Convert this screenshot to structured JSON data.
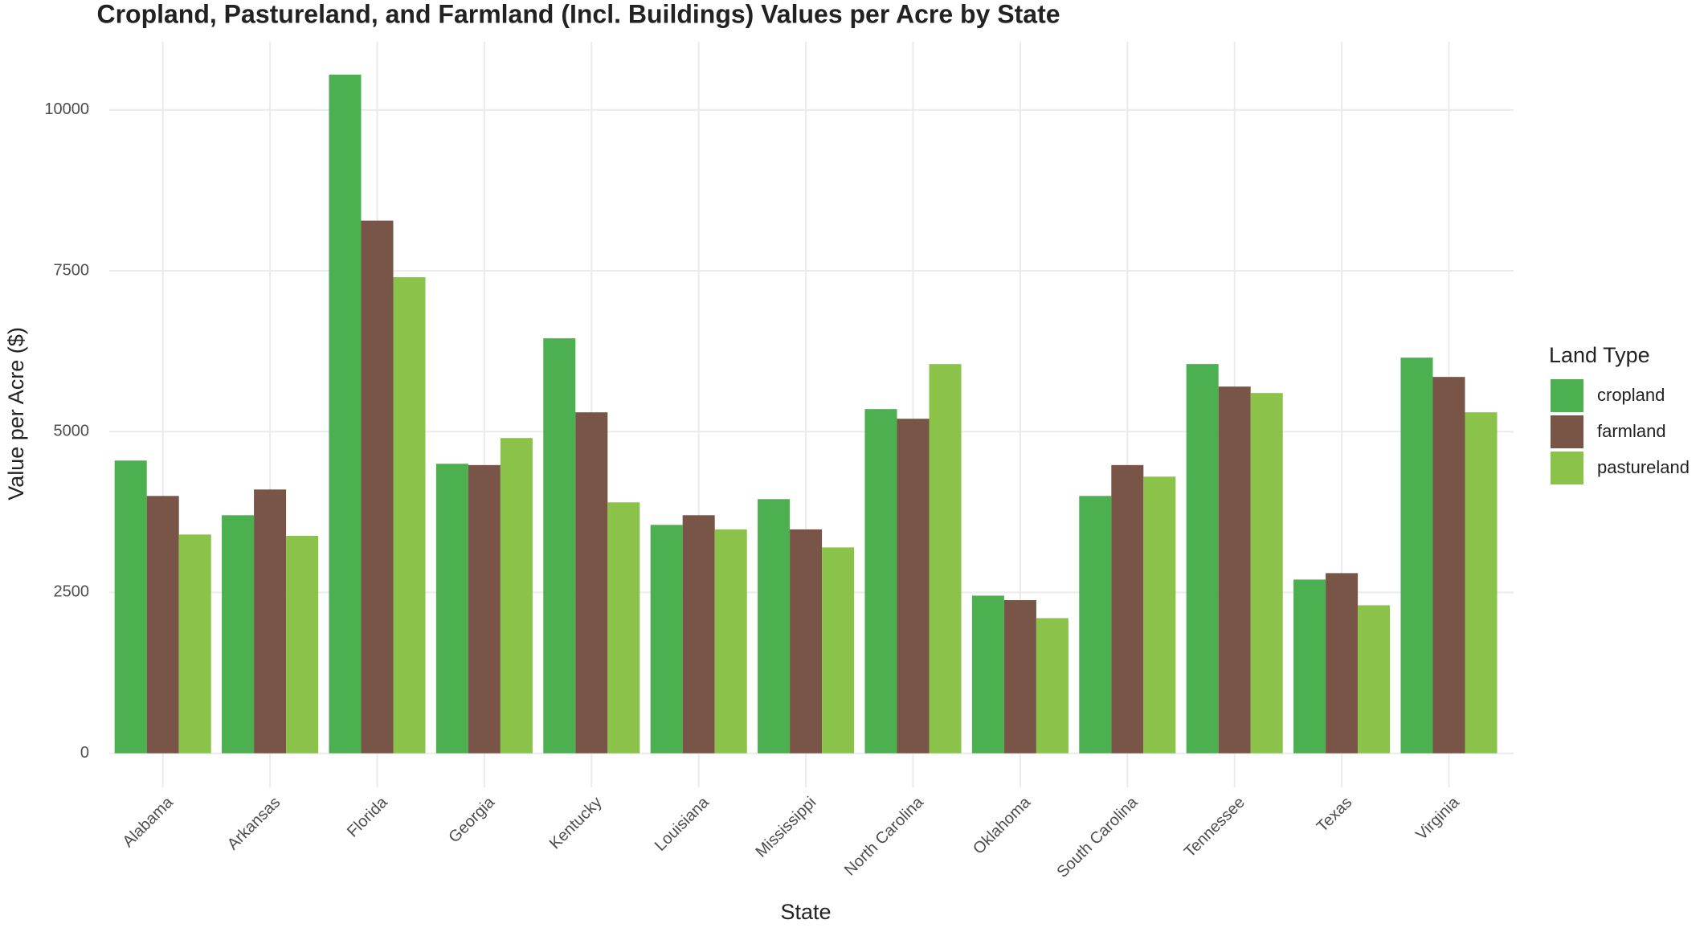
{
  "chart_data": {
    "type": "bar",
    "title": "Cropland, Pastureland, and Farmland (Incl. Buildings) Values per Acre by State",
    "x_label": "State",
    "y_label": "Value per Acre ($)",
    "categories": [
      "Alabama",
      "Arkansas",
      "Florida",
      "Georgia",
      "Kentucky",
      "Louisiana",
      "Mississippi",
      "North Carolina",
      "Oklahoma",
      "South Carolina",
      "Tennessee",
      "Texas",
      "Virginia"
    ],
    "series": [
      {
        "name": "cropland",
        "color": "#4caf50",
        "values": [
          4550,
          3700,
          10550,
          4500,
          6450,
          3550,
          3950,
          5350,
          2450,
          4000,
          6050,
          2700,
          6150
        ]
      },
      {
        "name": "farmland",
        "color": "#795548",
        "values": [
          4000,
          4100,
          8280,
          4480,
          5300,
          3700,
          3480,
          5200,
          2380,
          4480,
          5700,
          2800,
          5850
        ]
      },
      {
        "name": "pastureland",
        "color": "#8bc34a",
        "values": [
          3400,
          3380,
          7400,
          4900,
          3900,
          3480,
          3200,
          6050,
          2100,
          4300,
          5600,
          2300,
          5300
        ]
      }
    ],
    "legend_title": "Land Type",
    "legend": "right",
    "ylim": [
      -530,
      11060
    ],
    "yticks": [
      0,
      2500,
      5000,
      7500,
      10000
    ],
    "grid": true
  }
}
